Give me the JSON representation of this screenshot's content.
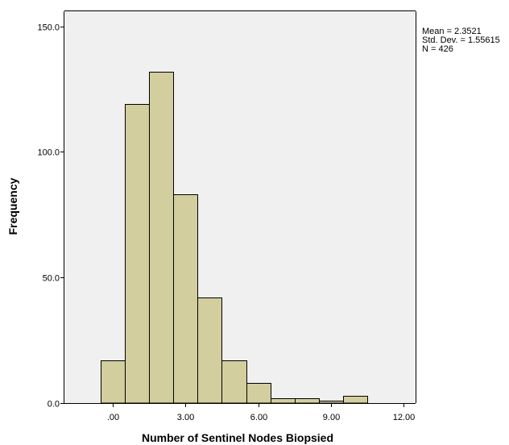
{
  "chart_data": {
    "type": "bar",
    "xlabel": "Number of Sentinel Nodes Biopsied",
    "ylabel": "Frequency",
    "bin_start": -0.5,
    "bin_width": 1,
    "values": [
      17,
      119,
      132,
      83,
      42,
      17,
      8,
      2,
      2,
      1,
      3
    ],
    "xlim": [
      -2,
      12.5
    ],
    "ylim": [
      0,
      156
    ],
    "x_ticks": [
      0,
      3,
      6,
      9,
      12
    ],
    "x_tick_labels": [
      ".00",
      "3.00",
      "6.00",
      "9.00",
      "12.00"
    ],
    "y_ticks": [
      0,
      50,
      100,
      150
    ],
    "y_tick_labels": [
      "0.0",
      "50.0",
      "100.0",
      "150.0"
    ],
    "bar_color": "#d3ce9e",
    "plot_bg": "#f0f0f0",
    "grid": false
  },
  "stats": {
    "mean": "Mean = 2.3521",
    "sd": "Std. Dev. = 1.55615",
    "n": "N = 426"
  }
}
